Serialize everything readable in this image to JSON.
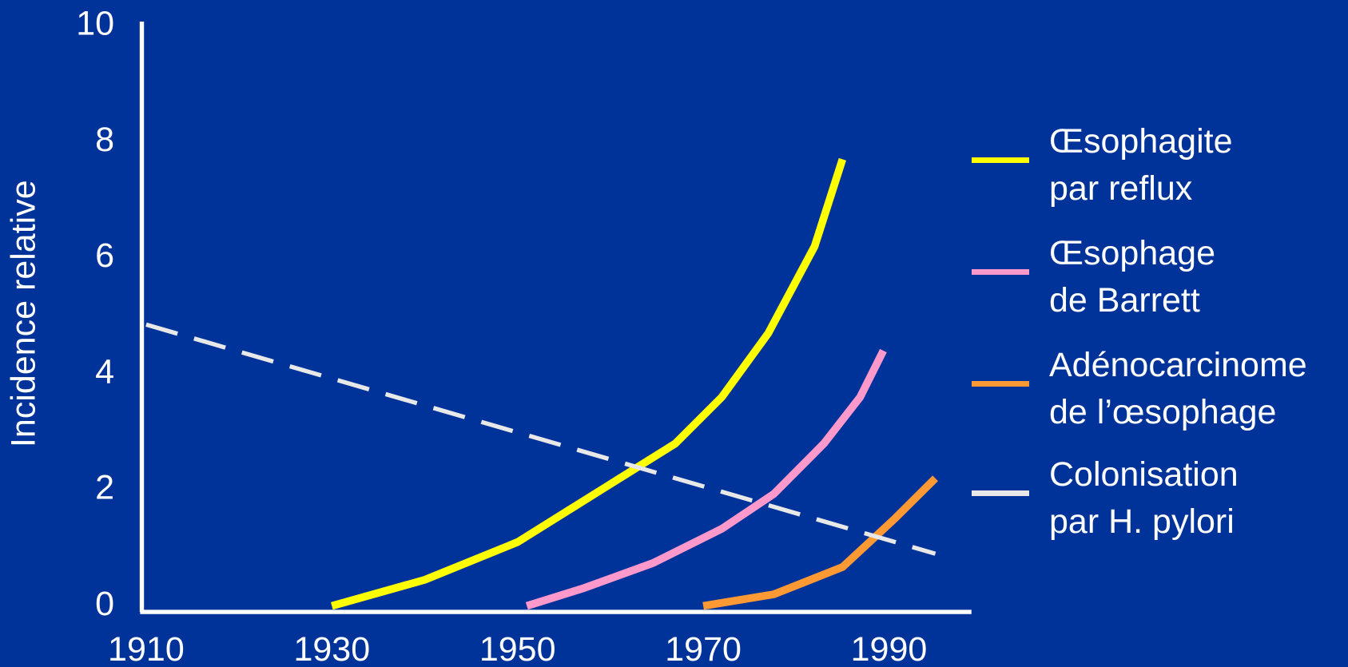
{
  "chart_data": {
    "type": "line",
    "ylabel": "Incidence relative",
    "xlim": [
      1910,
      1998
    ],
    "xticks": [
      1910,
      1930,
      1950,
      1970,
      1990
    ],
    "ylim": [
      0,
      10
    ],
    "yticks": [
      0,
      2,
      4,
      6,
      8,
      10
    ],
    "series": [
      {
        "name": "Œsophagite\npar reflux",
        "color": "#ffff00",
        "x": [
          1930,
          1940,
          1950,
          1960,
          1967,
          1972,
          1977,
          1982,
          1985
        ],
        "values": [
          0,
          0.45,
          1.1,
          2.1,
          2.8,
          3.6,
          4.7,
          6.2,
          7.7
        ]
      },
      {
        "name": "Œsophage\nde Barrett",
        "color": "#ff99cc",
        "x": [
          1951,
          1957,
          1964.6,
          1972,
          1977.6,
          1983,
          1986.9,
          1989.4
        ],
        "values": [
          0,
          0.3,
          0.74,
          1.33,
          1.93,
          2.8,
          3.6,
          4.4
        ]
      },
      {
        "name": "Adénocarcinome\nde l’œsophage",
        "color": "#ff9933",
        "x": [
          1970,
          1977.6,
          1985,
          1990.6,
          1995
        ],
        "values": [
          0,
          0.2,
          0.67,
          1.5,
          2.2
        ]
      },
      {
        "name": "Colonisation\npar H. pylori",
        "color": "#e8e8e8",
        "dashed": true,
        "x": [
          1910,
          1995
        ],
        "values": [
          4.85,
          0.9
        ]
      }
    ]
  }
}
